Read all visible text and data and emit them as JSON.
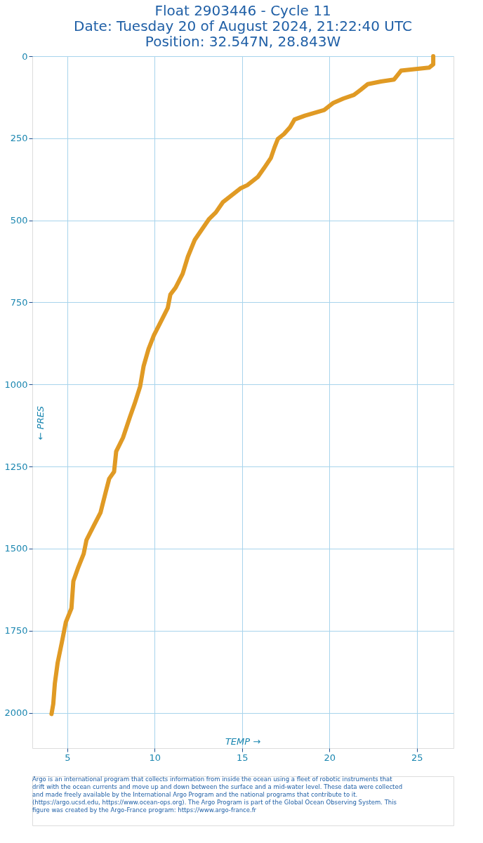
{
  "chart_data": {
    "type": "line",
    "title": "Float 2903446 - Cycle 11\nDate: Tuesday 20 of August 2024, 21:22:40 UTC\nPosition: 32.547N, 28.843W",
    "xlabel": "TEMP →",
    "ylabel": "← PRES",
    "xlim": [
      3,
      27.1
    ],
    "ylim": [
      2108,
      0
    ],
    "xticks": [
      5,
      10,
      15,
      20,
      25
    ],
    "yticks": [
      0,
      250,
      500,
      750,
      1000,
      1250,
      1500,
      1750,
      2000
    ],
    "grid": true,
    "marker": "none",
    "line_style": "solid",
    "series": [
      {
        "color": "#e09a24",
        "x": [
          25.94,
          25.94,
          25.7,
          24.1,
          23.7,
          22.95,
          22.2,
          21.8,
          21.4,
          20.8,
          20.2,
          19.7,
          18.6,
          18.0,
          17.75,
          17.4,
          17.05,
          16.85,
          16.65,
          16.26,
          15.9,
          15.3,
          14.9,
          14.4,
          13.9,
          13.5,
          13.1,
          12.7,
          12.3,
          11.9,
          11.6,
          11.2,
          10.9,
          10.75,
          10.35,
          9.96,
          9.65,
          9.37,
          9.17,
          8.86,
          8.58,
          8.19,
          7.8,
          7.68,
          7.4,
          7.2,
          6.9,
          6.5,
          6.1,
          5.94,
          5.63,
          5.35,
          5.24,
          4.92,
          4.69,
          4.45,
          4.29,
          4.2,
          4.1
        ],
        "values": [
          0,
          25,
          35,
          44,
          71,
          77,
          85,
          102,
          118,
          129,
          143,
          164,
          181,
          193,
          216,
          237,
          252,
          279,
          310,
          341,
          368,
          393,
          403,
          424,
          445,
          476,
          497,
          528,
          559,
          611,
          663,
          705,
          726,
          767,
          809,
          850,
          892,
          944,
          1006,
          1058,
          1100,
          1162,
          1204,
          1266,
          1287,
          1328,
          1391,
          1432,
          1474,
          1516,
          1557,
          1599,
          1682,
          1724,
          1786,
          1848,
          1911,
          1973,
          2004
        ]
      }
    ],
    "annotations": [
      "Argo is an international program that collects information from inside the ocean using a fleet of robotic instruments that drift with the ocean currents and move up and down between the surface and a mid-water level. These data were collected and made freely available by the International Argo Program and the national programs that contribute to it. (https://argo.ucsd.edu, https://www.ocean-ops.org). The Argo Program is part of the Global Ocean Observing System. This figure was created by the Argo-France program: https://www.argo-france.fr"
    ]
  }
}
